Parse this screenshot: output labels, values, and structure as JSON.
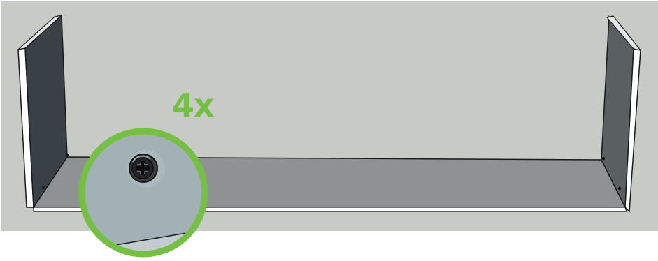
{
  "diagram": {
    "step_quantity_label": "4x",
    "callout_detail": "screw-head-detail",
    "colors": {
      "background": "#c8cac5",
      "callout_ring": "#74bf44",
      "callout_fill": "#a2b1b6",
      "panel_dark": "#3a4146",
      "panel_right": "#5a5f62",
      "shelf_top": "#8f9292",
      "panel_edge": "#ffffff"
    }
  }
}
